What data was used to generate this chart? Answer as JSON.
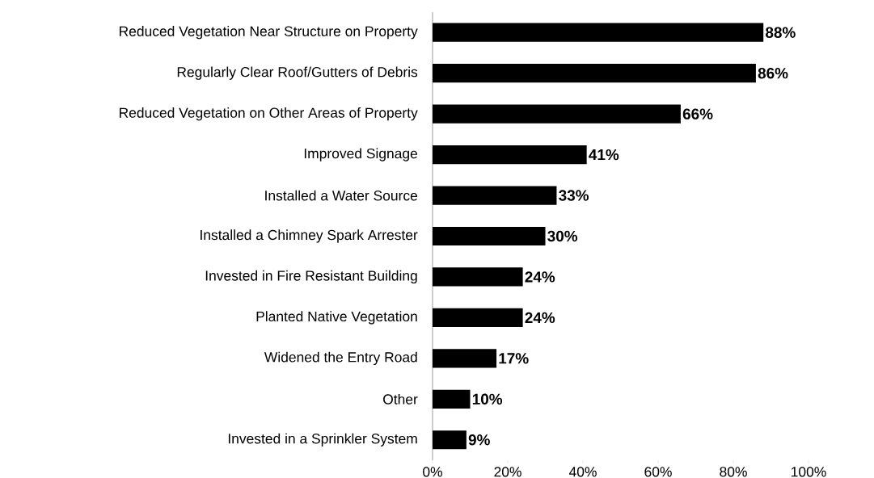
{
  "chart_data": {
    "type": "bar",
    "orientation": "horizontal",
    "categories": [
      "Reduced Vegetation Near Structure on Property",
      "Regularly Clear Roof/Gutters of Debris",
      "Reduced Vegetation on Other Areas of Property",
      "Improved Signage",
      "Installed a Water Source",
      "Installed a Chimney Spark Arrester",
      "Invested in Fire Resistant Building",
      "Planted Native Vegetation",
      "Widened the Entry Road",
      "Other",
      "Invested in a Sprinkler System"
    ],
    "values": [
      88,
      86,
      66,
      41,
      33,
      30,
      24,
      24,
      17,
      10,
      9
    ],
    "value_labels": [
      "88%",
      "86%",
      "66%",
      "41%",
      "33%",
      "30%",
      "24%",
      "24%",
      "17%",
      "10%",
      "9%"
    ],
    "color": "#000000",
    "xlim": [
      0,
      100
    ],
    "xticks": [
      {
        "value": 0,
        "label": "0%"
      },
      {
        "value": 20,
        "label": "20%"
      },
      {
        "value": 40,
        "label": "40%"
      },
      {
        "value": 60,
        "label": "60%"
      },
      {
        "value": 80,
        "label": "80%"
      },
      {
        "value": 100,
        "label": "100%"
      }
    ],
    "grid": false
  }
}
